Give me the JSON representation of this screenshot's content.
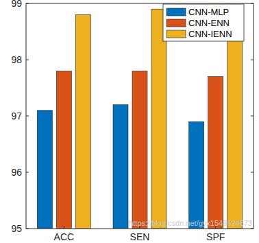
{
  "chart_data": {
    "type": "bar",
    "categories": [
      "ACC",
      "SEN",
      "SPF"
    ],
    "series": [
      {
        "name": "CNN-MLP",
        "color": "#0072BD",
        "values": [
          97.1,
          97.2,
          96.9
        ]
      },
      {
        "name": "CNN-ENN",
        "color": "#D95319",
        "values": [
          97.8,
          97.8,
          97.7
        ]
      },
      {
        "name": "CNN-IENN",
        "color": "#EDB120",
        "values": [
          98.8,
          98.9,
          98.6
        ]
      }
    ],
    "ylim": [
      95,
      99
    ],
    "yticks": [
      95,
      96,
      97,
      98,
      99
    ],
    "legend": "top-right",
    "grid": false,
    "annotations": [
      "https://blog.csdn.net/gyx1549624673"
    ]
  }
}
